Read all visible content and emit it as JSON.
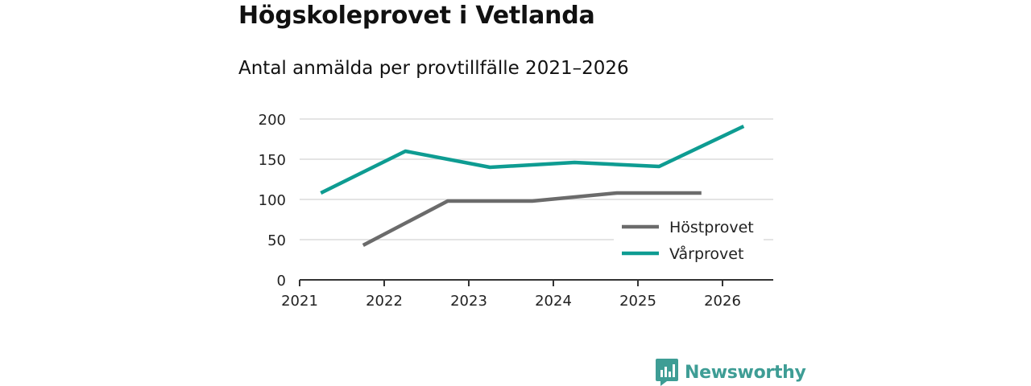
{
  "title": "Högskoleprovet i Vetlanda",
  "subtitle": "Antal anmälda per provtillfälle 2021–2026",
  "brand": {
    "name": "Newsworthy",
    "color": "#3e9d95"
  },
  "chart_data": {
    "type": "line",
    "title": "Högskoleprovet i Vetlanda",
    "subtitle": "Antal anmälda per provtillfälle 2021–2026",
    "xlabel": "",
    "ylabel": "",
    "xlim": [
      2021,
      2026.6
    ],
    "ylim": [
      0,
      200
    ],
    "x_ticks": [
      "2021",
      "2022",
      "2023",
      "2024",
      "2025",
      "2026"
    ],
    "y_ticks": [
      "0",
      "50",
      "100",
      "150",
      "200"
    ],
    "grid": true,
    "legend_position": "bottom-right",
    "series": [
      {
        "name": "Höstprovet",
        "color": "#6b6b6b",
        "x": [
          2021.75,
          2022.75,
          2023.75,
          2024.75,
          2025.75
        ],
        "values": [
          43,
          98,
          98,
          108,
          108
        ]
      },
      {
        "name": "Vårprovet",
        "color": "#0e9c92",
        "x": [
          2021.25,
          2022.25,
          2023.25,
          2024.25,
          2025.25,
          2026.25
        ],
        "values": [
          108,
          160,
          140,
          146,
          141,
          191
        ]
      }
    ]
  }
}
